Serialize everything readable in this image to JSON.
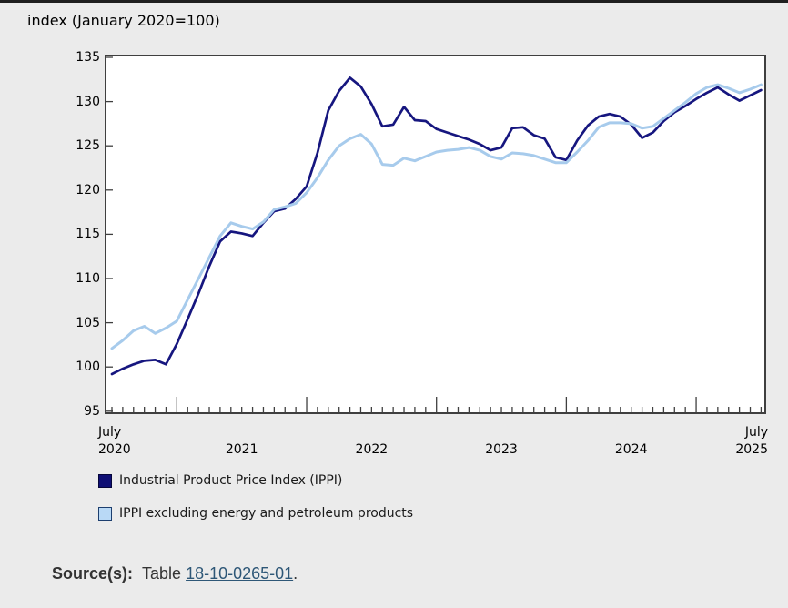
{
  "page": {
    "title": "index (January 2020=100)"
  },
  "chart_data": {
    "type": "line",
    "title": "index (January 2020=100)",
    "xlabel": "",
    "ylabel": "index (January 2020=100)",
    "ylim": [
      95,
      135
    ],
    "y_ticks": [
      95,
      100,
      105,
      110,
      115,
      120,
      125,
      130,
      135
    ],
    "grid": false,
    "legend_position": "bottom-left",
    "x_unit": "month",
    "x_range_months": 61,
    "x_first": "July 2020",
    "x_last": "July 2025",
    "x_axis_labels": {
      "first": "July\n2020",
      "years": [
        "2021",
        "2022",
        "2023",
        "2024"
      ],
      "last": "July\n2025"
    },
    "months": [
      "2020-07",
      "2020-08",
      "2020-09",
      "2020-10",
      "2020-11",
      "2020-12",
      "2021-01",
      "2021-02",
      "2021-03",
      "2021-04",
      "2021-05",
      "2021-06",
      "2021-07",
      "2021-08",
      "2021-09",
      "2021-10",
      "2021-11",
      "2021-12",
      "2022-01",
      "2022-02",
      "2022-03",
      "2022-04",
      "2022-05",
      "2022-06",
      "2022-07",
      "2022-08",
      "2022-09",
      "2022-10",
      "2022-11",
      "2022-12",
      "2023-01",
      "2023-02",
      "2023-03",
      "2023-04",
      "2023-05",
      "2023-06",
      "2023-07",
      "2023-08",
      "2023-09",
      "2023-10",
      "2023-11",
      "2023-12",
      "2024-01",
      "2024-02",
      "2024-03",
      "2024-04",
      "2024-05",
      "2024-06",
      "2024-07",
      "2024-08",
      "2024-09",
      "2024-10",
      "2024-11",
      "2024-12",
      "2025-01",
      "2025-02",
      "2025-03",
      "2025-04",
      "2025-05",
      "2025-06",
      "2025-07"
    ],
    "series": [
      {
        "name": "Industrial Product Price Index (IPPI)",
        "color": "#16167f",
        "stroke_width": 2.7,
        "values": [
          99.2,
          99.8,
          100.3,
          100.7,
          100.8,
          100.3,
          102.6,
          105.4,
          108.3,
          111.4,
          114.2,
          115.3,
          115.1,
          114.8,
          116.3,
          117.6,
          117.9,
          119.0,
          120.4,
          124.2,
          129.0,
          131.2,
          132.7,
          131.7,
          129.7,
          127.2,
          127.4,
          129.4,
          127.9,
          127.8,
          126.9,
          126.5,
          126.1,
          125.7,
          125.2,
          124.5,
          124.8,
          127.0,
          127.1,
          126.2,
          125.8,
          123.7,
          123.4,
          125.6,
          127.3,
          128.3,
          128.6,
          128.3,
          127.4,
          125.9,
          126.5,
          127.8,
          128.8,
          129.5,
          130.3,
          131.0,
          131.6,
          130.8,
          130.1,
          130.7,
          131.3
        ]
      },
      {
        "name": "IPPI excluding energy and petroleum products",
        "color": "#a7cbec",
        "stroke_width": 3,
        "values": [
          102.1,
          103.0,
          104.1,
          104.6,
          103.8,
          104.4,
          105.2,
          107.6,
          110.0,
          112.4,
          114.8,
          116.3,
          115.9,
          115.6,
          116.4,
          117.8,
          118.1,
          118.5,
          119.7,
          121.4,
          123.4,
          125.0,
          125.8,
          126.3,
          125.2,
          122.9,
          122.8,
          123.6,
          123.3,
          123.8,
          124.3,
          124.5,
          124.6,
          124.8,
          124.5,
          123.8,
          123.5,
          124.2,
          124.1,
          123.9,
          123.5,
          123.1,
          123.1,
          124.3,
          125.6,
          127.1,
          127.6,
          127.6,
          127.5,
          127.0,
          127.2,
          128.1,
          129.0,
          129.9,
          130.9,
          131.6,
          131.9,
          131.5,
          131.0,
          131.4,
          131.9
        ]
      }
    ]
  },
  "legend": {
    "items": [
      {
        "label": "Industrial Product Price Index (IPPI)",
        "swatch_fill": "#0e0e74",
        "swatch_border": "#05053a"
      },
      {
        "label": "IPPI excluding energy and petroleum products",
        "swatch_fill": "#b9d9f6",
        "swatch_border": "#1c3e6e"
      }
    ]
  },
  "source": {
    "label": "Source(s):",
    "prefix": "Table ",
    "link_text": "18-10-0265-01",
    "suffix": "."
  },
  "colors": {
    "background": "#ebebeb",
    "top_bar": "#1f1f1f",
    "plot_background": "#ffffff",
    "axis": "#3f3f3f",
    "link": "#2e5777",
    "series_dark": "#16167f",
    "series_light": "#a7cbec"
  }
}
